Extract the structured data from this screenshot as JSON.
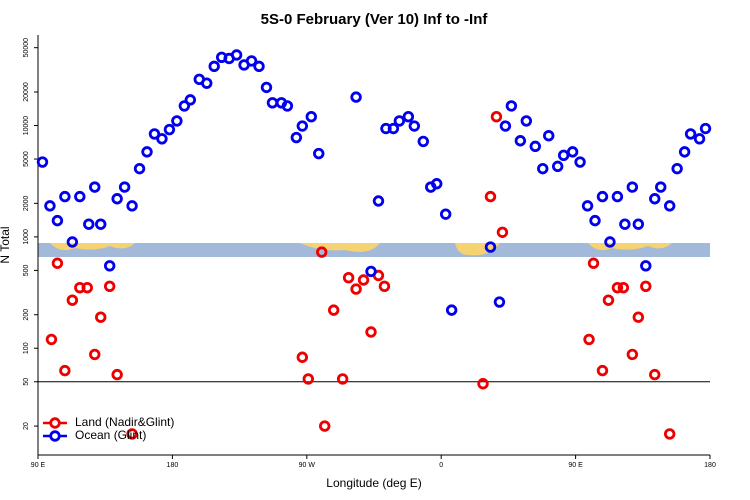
{
  "chart_data": {
    "type": "scatter",
    "title": "5S-0 February (Ver 10)   Inf to -Inf",
    "x_label": "Longitude (deg E)",
    "y_label": "N Total",
    "log_y": true,
    "legend": "lower left",
    "hline": 50,
    "xlim": [
      90,
      540
    ],
    "xticks": [
      {
        "value": 90,
        "label": "90 E"
      },
      180,
      {
        "value": 270,
        "label": "90 W"
      },
      {
        "value": 360,
        "label": "0"
      },
      {
        "value": 450,
        "label": "90 E"
      },
      {
        "value": 540,
        "label": "180"
      }
    ],
    "ylim": [
      11,
      65000
    ],
    "yticks": [
      20,
      50,
      100,
      200,
      500,
      1000,
      2000,
      5000,
      10000,
      20000,
      50000
    ],
    "series": [
      {
        "name": "Land (Nadir&Glint)",
        "color": "#ee0000",
        "x": [
          99,
          103,
          108,
          113,
          118,
          123,
          128,
          132,
          138,
          143,
          153,
          267,
          271,
          280,
          282,
          288,
          294,
          298,
          303,
          308,
          313,
          318,
          322,
          388,
          393,
          397,
          401,
          459,
          462,
          468,
          472,
          478,
          482,
          488,
          492,
          497,
          503,
          513
        ],
        "values": [
          120,
          580,
          63,
          270,
          350,
          350,
          88,
          190,
          360,
          58,
          17,
          83,
          53,
          730,
          20,
          220,
          53,
          430,
          340,
          410,
          140,
          450,
          360,
          48,
          2300,
          12000,
          1100,
          120,
          580,
          63,
          270,
          350,
          350,
          88,
          190,
          360,
          58,
          17
        ]
      },
      {
        "name": "Ocean (Glint)",
        "color": "#0000ee",
        "x": [
          93,
          98,
          103,
          108,
          113,
          118,
          124,
          128,
          132,
          138,
          143,
          148,
          153,
          158,
          163,
          168,
          173,
          178,
          183,
          188,
          192,
          198,
          203,
          208,
          213,
          218,
          223,
          228,
          233,
          238,
          243,
          247,
          253,
          257,
          263,
          267,
          273,
          278,
          303,
          313,
          318,
          323,
          328,
          332,
          338,
          342,
          348,
          353,
          357,
          363,
          367,
          393,
          399,
          403,
          407,
          413,
          417,
          423,
          428,
          432,
          438,
          442,
          448,
          453,
          458,
          463,
          468,
          473,
          478,
          483,
          488,
          492,
          497,
          503,
          507,
          513,
          518,
          523,
          527,
          533,
          537
        ],
        "values": [
          4700,
          1900,
          1400,
          2300,
          900,
          2300,
          1300,
          2800,
          1300,
          550,
          2200,
          2800,
          1900,
          4100,
          5800,
          8400,
          7600,
          9200,
          11000,
          15000,
          17000,
          26000,
          24000,
          34000,
          41000,
          40000,
          43000,
          35000,
          38000,
          34000,
          22000,
          16000,
          16000,
          15000,
          7800,
          9900,
          12000,
          5600,
          18000,
          490,
          2100,
          9400,
          9400,
          11000,
          12000,
          9900,
          7200,
          2800,
          3000,
          1600,
          220,
          810,
          260,
          9900,
          15000,
          7300,
          11000,
          6500,
          4100,
          8100,
          4300,
          5400,
          5800,
          4700,
          1900,
          1400,
          2300,
          900,
          2300,
          1300,
          2800,
          1300,
          550,
          2200,
          2800,
          1900,
          4100,
          5800,
          8400,
          7600,
          9400
        ]
      }
    ]
  }
}
